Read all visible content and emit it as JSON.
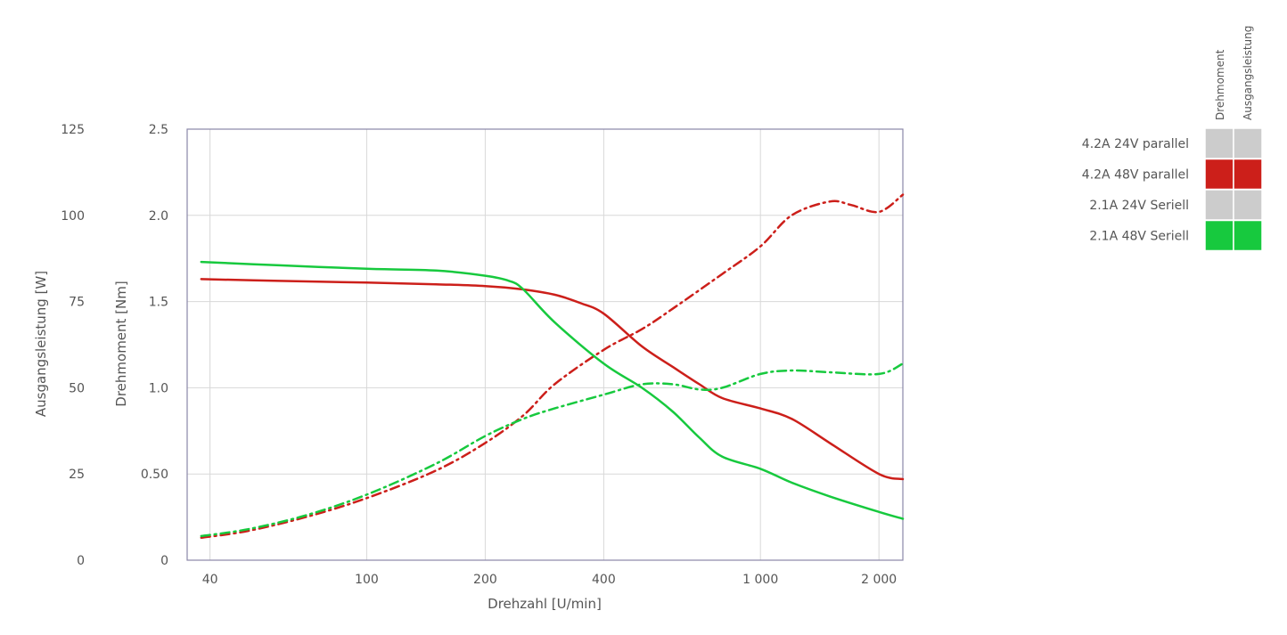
{
  "chart_data": {
    "type": "line",
    "xlabel": "Drehzahl [U/min]",
    "ylabel_left_outer": "Ausgangsleistung [W]",
    "ylabel_left_inner": "Drehmoment [Nm]",
    "x_scale": "log",
    "xlim": [
      35,
      2300
    ],
    "x_ticks": [
      40,
      100,
      200,
      400,
      1000,
      2000
    ],
    "x_tick_labels": [
      "40",
      "100",
      "200",
      "400",
      "1 000",
      "2 000"
    ],
    "torque_ylim": [
      0,
      2.5
    ],
    "torque_ticks": [
      0,
      0.5,
      1.0,
      1.5,
      2.0,
      2.5
    ],
    "torque_tick_labels": [
      "0",
      "0.50",
      "1.0",
      "1.5",
      "2.0",
      "2.5"
    ],
    "power_ylim": [
      0,
      125
    ],
    "power_ticks": [
      0,
      25,
      50,
      75,
      100,
      125
    ],
    "power_tick_labels": [
      "0",
      "25",
      "50",
      "75",
      "100",
      "125"
    ],
    "grid": true,
    "legend_placement": "right",
    "legend_columns": [
      "Drehmoment",
      "Ausgangsleistung"
    ],
    "legend_rows": [
      {
        "label": "4.2A 24V parallel",
        "color": "#cccccc",
        "active": false
      },
      {
        "label": "4.2A 48V parallel",
        "color": "#cc1f1a",
        "active": true
      },
      {
        "label": "2.1A 24V Seriell",
        "color": "#cccccc",
        "active": false
      },
      {
        "label": "2.1A 48V Seriell",
        "color": "#17c93e",
        "active": true
      }
    ],
    "series": [
      {
        "legend_row": "4.2A 48V parallel",
        "quantity": "Drehmoment",
        "axis": "torque",
        "color": "#cc1f1a",
        "dash": "solid",
        "x": [
          38,
          60,
          100,
          150,
          200,
          250,
          300,
          350,
          400,
          500,
          600,
          700,
          800,
          1000,
          1200,
          1500,
          2000,
          2300
        ],
        "y": [
          1.63,
          1.62,
          1.61,
          1.6,
          1.59,
          1.57,
          1.54,
          1.49,
          1.43,
          1.24,
          1.12,
          1.02,
          0.94,
          0.88,
          0.82,
          0.68,
          0.5,
          0.47
        ]
      },
      {
        "legend_row": "4.2A 48V parallel",
        "quantity": "Ausgangsleistung",
        "axis": "power",
        "color": "#cc1f1a",
        "dash": "dashdot",
        "x": [
          38,
          50,
          70,
          100,
          150,
          200,
          250,
          300,
          400,
          500,
          600,
          800,
          1000,
          1200,
          1500,
          1700,
          2000,
          2300
        ],
        "y": [
          6.5,
          8.5,
          12.5,
          18,
          26,
          34,
          42,
          51,
          61,
          67,
          73,
          83,
          91,
          100,
          104,
          103,
          101,
          106
        ]
      },
      {
        "legend_row": "2.1A 48V Seriell",
        "quantity": "Drehmoment",
        "axis": "torque",
        "color": "#17c93e",
        "dash": "solid",
        "x": [
          38,
          60,
          100,
          150,
          200,
          230,
          250,
          300,
          400,
          500,
          600,
          700,
          800,
          1000,
          1200,
          1500,
          2000,
          2300
        ],
        "y": [
          1.73,
          1.71,
          1.69,
          1.68,
          1.65,
          1.62,
          1.57,
          1.38,
          1.14,
          1.0,
          0.86,
          0.71,
          0.6,
          0.53,
          0.45,
          0.37,
          0.28,
          0.24
        ]
      },
      {
        "legend_row": "2.1A 48V Seriell",
        "quantity": "Ausgangsleistung",
        "axis": "power",
        "color": "#17c93e",
        "dash": "dashdot",
        "x": [
          38,
          50,
          70,
          100,
          150,
          200,
          250,
          300,
          400,
          500,
          600,
          700,
          800,
          1000,
          1200,
          1500,
          2000,
          2300
        ],
        "y": [
          7,
          9,
          13,
          19,
          28,
          36,
          41,
          44,
          48,
          51,
          51,
          49.5,
          50,
          54,
          55,
          54.5,
          54,
          57
        ]
      }
    ]
  }
}
